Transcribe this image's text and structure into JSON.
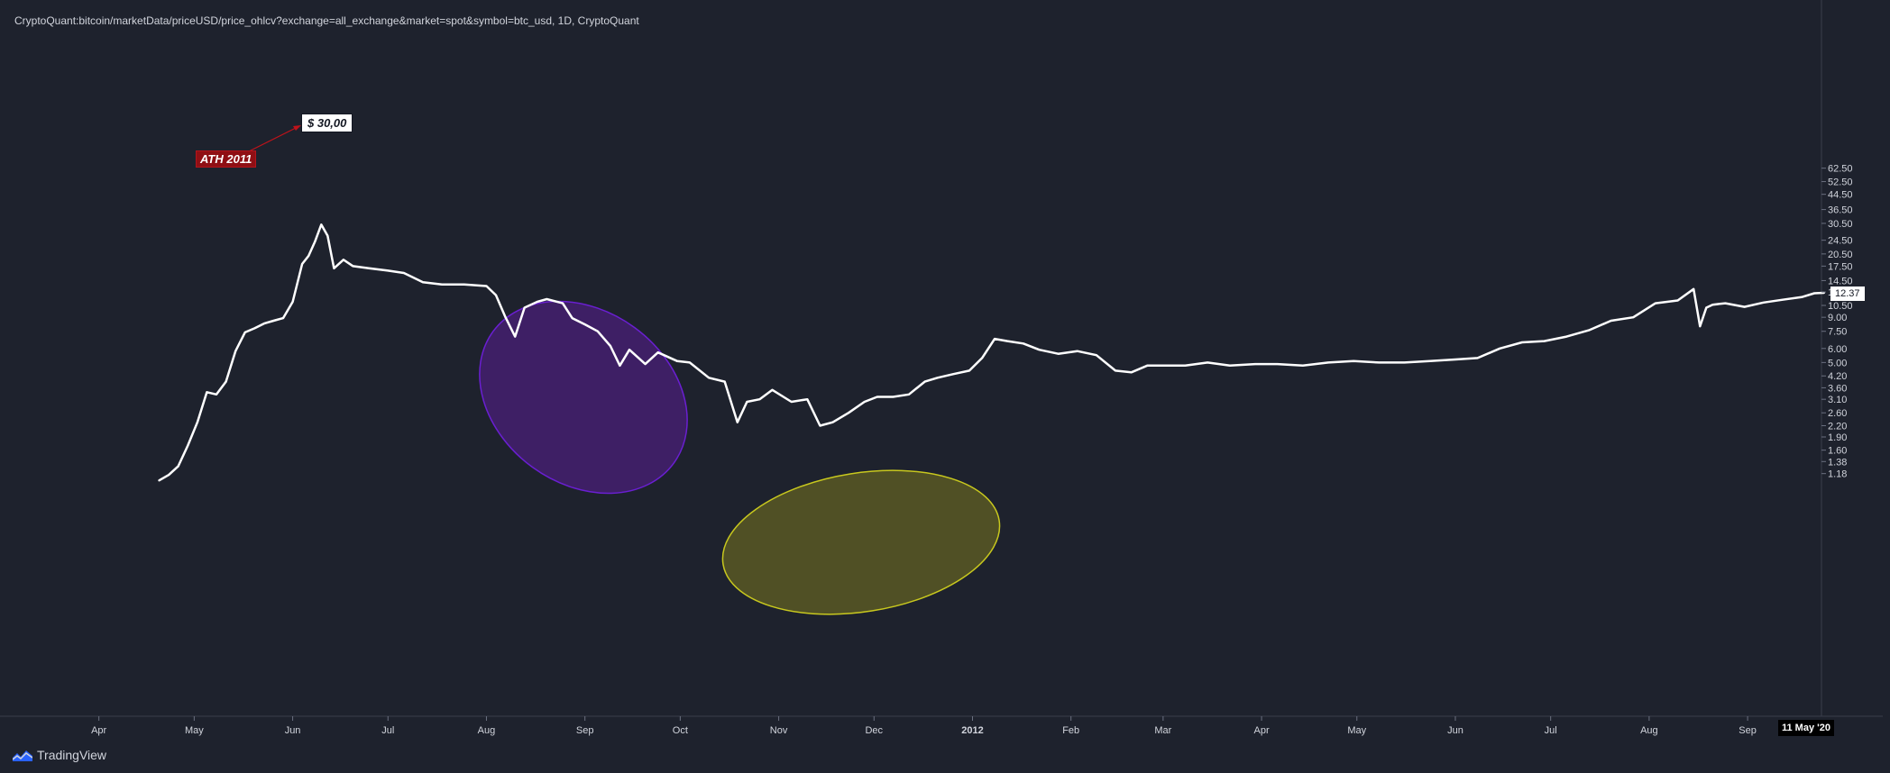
{
  "header": {
    "title": "CryptoQuant:bitcoin/marketData/priceUSD/price_ohlcv?exchange=all_exchange&market=spot&symbol=btc_usd, 1D, CryptoQuant"
  },
  "branding": {
    "logo_text": "TradingView",
    "logo_icon": "tradingview-logo-icon"
  },
  "annotations": {
    "ath_label": "ATH 2011",
    "price_callout": "$ 30,00",
    "purple_ellipse_color": "#6a1fd1",
    "yellow_ellipse_color": "#c8c81e"
  },
  "badges": {
    "last_price": "12.37",
    "crosshair_date": "11 May '20"
  },
  "colors": {
    "background": "#1e222d",
    "line": "#ffffff",
    "axis_text": "#d1d4dc",
    "ath_label_bg": "#8f0f14"
  },
  "chart_data": {
    "type": "line",
    "title": "",
    "xlabel": "",
    "ylabel": "",
    "y_scale": "log",
    "ylim": [
      1.05,
      66
    ],
    "grid": false,
    "x_ticks": [
      "Apr",
      "May",
      "Jun",
      "Jul",
      "Aug",
      "Sep",
      "Oct",
      "Nov",
      "Dec",
      "2012",
      "Feb",
      "Mar",
      "Apr",
      "May",
      "Jun",
      "Jul",
      "Aug",
      "Sep"
    ],
    "y_ticks": [
      "62.50",
      "52.50",
      "44.50",
      "36.50",
      "30.50",
      "24.50",
      "20.50",
      "17.50",
      "14.50",
      "12.50",
      "10.50",
      "9.00",
      "7.50",
      "6.00",
      "5.00",
      "4.20",
      "3.60",
      "3.10",
      "2.60",
      "2.20",
      "1.90",
      "1.60",
      "1.38",
      "1.18"
    ],
    "series": [
      {
        "name": "",
        "x": [
          "2011-04-20",
          "2011-04-23",
          "2011-04-26",
          "2011-04-29",
          "2011-05-02",
          "2011-05-05",
          "2011-05-08",
          "2011-05-11",
          "2011-05-14",
          "2011-05-17",
          "2011-05-20",
          "2011-05-23",
          "2011-05-26",
          "2011-05-29",
          "2011-06-01",
          "2011-06-04",
          "2011-06-06",
          "2011-06-08",
          "2011-06-10",
          "2011-06-12",
          "2011-06-14",
          "2011-06-17",
          "2011-06-20",
          "2011-06-25",
          "2011-07-01",
          "2011-07-06",
          "2011-07-12",
          "2011-07-18",
          "2011-07-25",
          "2011-08-01",
          "2011-08-04",
          "2011-08-07",
          "2011-08-10",
          "2011-08-13",
          "2011-08-17",
          "2011-08-20",
          "2011-08-25",
          "2011-08-28",
          "2011-09-01",
          "2011-09-05",
          "2011-09-09",
          "2011-09-12",
          "2011-09-15",
          "2011-09-20",
          "2011-09-24",
          "2011-09-30",
          "2011-10-04",
          "2011-10-10",
          "2011-10-15",
          "2011-10-19",
          "2011-10-22",
          "2011-10-26",
          "2011-10-30",
          "2011-11-05",
          "2011-11-10",
          "2011-11-14",
          "2011-11-18",
          "2011-11-23",
          "2011-11-28",
          "2011-12-02",
          "2011-12-07",
          "2011-12-12",
          "2011-12-17",
          "2011-12-21",
          "2011-12-26",
          "2011-12-31",
          "2012-01-04",
          "2012-01-08",
          "2012-01-12",
          "2012-01-17",
          "2012-01-22",
          "2012-01-28",
          "2012-02-03",
          "2012-02-09",
          "2012-02-15",
          "2012-02-20",
          "2012-02-25",
          "2012-03-01",
          "2012-03-08",
          "2012-03-15",
          "2012-03-22",
          "2012-03-30",
          "2012-04-06",
          "2012-04-14",
          "2012-04-22",
          "2012-04-30",
          "2012-05-08",
          "2012-05-16",
          "2012-05-24",
          "2012-06-01",
          "2012-06-08",
          "2012-06-15",
          "2012-06-22",
          "2012-06-29",
          "2012-07-06",
          "2012-07-13",
          "2012-07-20",
          "2012-07-27",
          "2012-08-03",
          "2012-08-10",
          "2012-08-15",
          "2012-08-17",
          "2012-08-19",
          "2012-08-21",
          "2012-08-25",
          "2012-08-31",
          "2012-09-06",
          "2012-09-12",
          "2012-09-18",
          "2012-09-22",
          "2012-09-25"
        ],
        "values": [
          1.08,
          1.16,
          1.3,
          1.7,
          2.3,
          3.4,
          3.3,
          3.9,
          5.8,
          7.4,
          7.8,
          8.3,
          8.6,
          8.9,
          11.0,
          18.0,
          20.0,
          24.0,
          30.0,
          26.0,
          17.0,
          19.0,
          17.5,
          17.0,
          16.5,
          16.0,
          14.2,
          13.8,
          13.8,
          13.5,
          12.0,
          9.0,
          7.0,
          10.2,
          11.0,
          11.4,
          10.8,
          8.9,
          8.2,
          7.5,
          6.2,
          4.8,
          5.9,
          4.9,
          5.7,
          5.1,
          5.0,
          4.1,
          3.9,
          2.3,
          3.0,
          3.1,
          3.5,
          3.0,
          3.1,
          2.2,
          2.3,
          2.6,
          3.0,
          3.2,
          3.2,
          3.3,
          3.9,
          4.1,
          4.3,
          4.5,
          5.3,
          6.8,
          6.6,
          6.4,
          5.9,
          5.6,
          5.8,
          5.5,
          4.5,
          4.4,
          4.8,
          4.8,
          4.8,
          5.0,
          4.8,
          4.9,
          4.9,
          4.8,
          5.0,
          5.1,
          5.0,
          5.0,
          5.1,
          5.2,
          5.3,
          6.0,
          6.5,
          6.6,
          7.0,
          7.6,
          8.6,
          9.0,
          10.8,
          11.2,
          13.0,
          8.0,
          10.2,
          10.6,
          10.8,
          10.3,
          10.9,
          11.3,
          11.7,
          12.3,
          12.37
        ]
      }
    ]
  }
}
